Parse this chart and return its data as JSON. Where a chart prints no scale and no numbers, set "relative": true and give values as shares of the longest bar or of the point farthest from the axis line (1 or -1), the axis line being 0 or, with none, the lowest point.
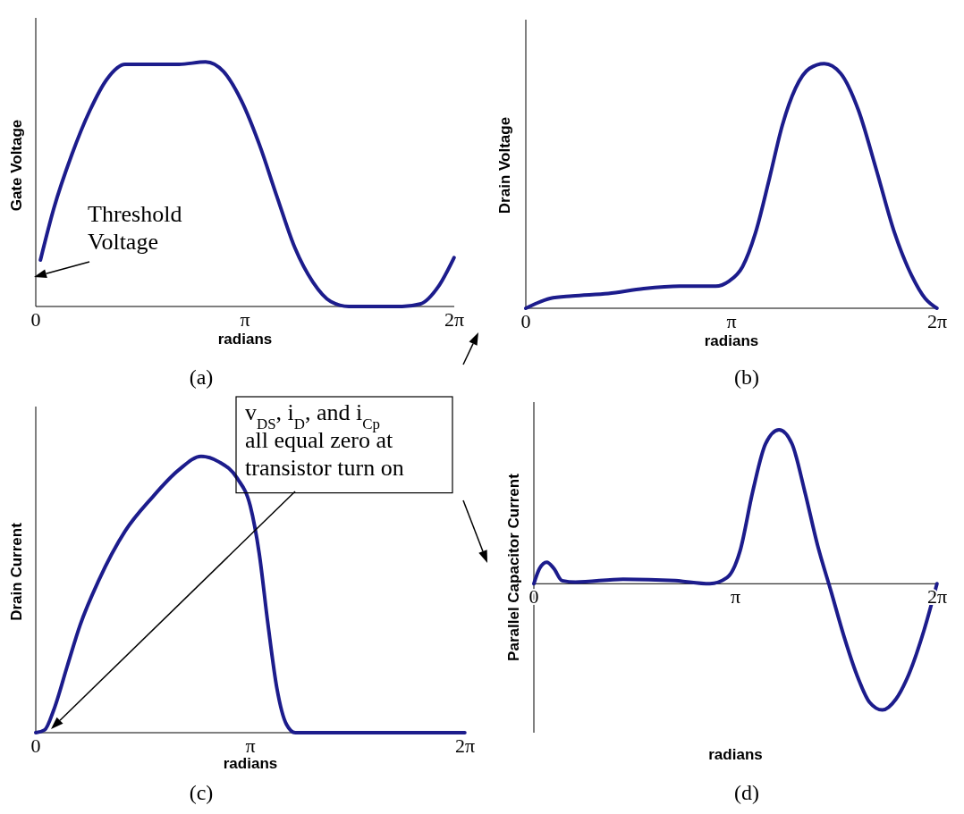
{
  "chart_data": [
    {
      "type": "line",
      "ylabel": "Gate Voltage",
      "xlabel": "radians",
      "relative": true,
      "tick_labels": "x",
      "xlim": [
        0,
        6.2832
      ],
      "xticks": [
        {
          "value": 0,
          "label": "0"
        },
        {
          "value": 3.1416,
          "label": "π"
        },
        {
          "value": 6.2832,
          "label": "2π"
        }
      ],
      "annotations": [
        "Threshold Voltage",
        "(a)"
      ],
      "series": [
        {
          "color": "#1c1c8c",
          "x": [
            0.07,
            0.27,
            0.54,
            0.81,
            1.07,
            1.34,
            1.75,
            2.15,
            2.55,
            2.82,
            3.09,
            3.36,
            3.62,
            3.89,
            4.16,
            4.43,
            4.7,
            5.1,
            5.5,
            5.77,
            6.04,
            6.28
          ],
          "values": [
            0.19,
            0.4,
            0.62,
            0.8,
            0.93,
            0.99,
            0.99,
            0.99,
            1,
            0.96,
            0.84,
            0.66,
            0.45,
            0.24,
            0.1,
            0.02,
            0,
            0,
            0,
            0.01,
            0.08,
            0.2
          ]
        }
      ]
    },
    {
      "type": "line",
      "ylabel": "Drain Voltage",
      "xlabel": "radians",
      "relative": true,
      "tick_labels": "x",
      "xlim": [
        0,
        6.2832
      ],
      "xticks": [
        {
          "value": 0,
          "label": "0"
        },
        {
          "value": 3.1416,
          "label": "π"
        },
        {
          "value": 6.2832,
          "label": "2π"
        }
      ],
      "annotations": [
        "(b)"
      ],
      "series": [
        {
          "color": "#1c1c8c",
          "x": [
            0,
            0.16,
            0.37,
            0.71,
            1.26,
            1.8,
            2.35,
            2.9,
            3.1,
            3.31,
            3.51,
            3.72,
            3.92,
            4.12,
            4.33,
            4.56,
            4.81,
            5.08,
            5.35,
            5.63,
            5.9,
            6.1,
            6.28
          ],
          "values": [
            0,
            0.02,
            0.04,
            0.05,
            0.06,
            0.08,
            0.09,
            0.09,
            0.11,
            0.17,
            0.31,
            0.53,
            0.75,
            0.9,
            0.98,
            1,
            0.96,
            0.81,
            0.57,
            0.31,
            0.13,
            0.04,
            0
          ]
        }
      ]
    },
    {
      "type": "line",
      "ylabel": "Drain Current",
      "xlabel": "radians",
      "relative": true,
      "tick_labels": "x",
      "xlim": [
        0,
        6.2832
      ],
      "xticks": [
        {
          "value": 0,
          "label": "0"
        },
        {
          "value": 3.1416,
          "label": "π"
        },
        {
          "value": 6.2832,
          "label": "2π"
        }
      ],
      "annotations": [
        "v$_{DS}$, i$_{D}$, and i$_{Cp}$ all equal zero at transistor turn on",
        "(c)"
      ],
      "series": [
        {
          "color": "#1c1c8c",
          "x": [
            0,
            0.13,
            0.26,
            0.46,
            0.65,
            0.92,
            1.31,
            1.7,
            2.09,
            2.42,
            2.68,
            2.95,
            3.14,
            3.27,
            3.4,
            3.53,
            3.67,
            3.8,
            4.71,
            6.28
          ],
          "values": [
            0,
            0.01,
            0.08,
            0.24,
            0.39,
            0.55,
            0.73,
            0.85,
            0.95,
            1,
            0.98,
            0.92,
            0.82,
            0.65,
            0.39,
            0.16,
            0.03,
            0,
            0,
            0
          ]
        }
      ]
    },
    {
      "type": "line",
      "ylabel": "Parallel Capacitor Current",
      "xlabel": "radians",
      "relative": true,
      "tick_labels": "x",
      "xlim": [
        0,
        6.2832
      ],
      "xticks": [
        {
          "value": 0,
          "label": "0"
        },
        {
          "value": 3.1416,
          "label": "π"
        },
        {
          "value": 6.2832,
          "label": "2π"
        }
      ],
      "annotations": [
        "(d)"
      ],
      "series": [
        {
          "color": "#1c1c8c",
          "x": [
            0,
            0.09,
            0.2,
            0.31,
            0.44,
            0.65,
            1.39,
            2.2,
            2.74,
            3.01,
            3.21,
            3.41,
            3.61,
            3.82,
            4.02,
            4.22,
            4.42,
            4.63,
            4.83,
            5.03,
            5.23,
            5.43,
            5.64,
            5.84,
            6.08,
            6.28
          ],
          "values": [
            0,
            0.1,
            0.14,
            0.1,
            0.02,
            0.01,
            0.03,
            0.02,
            0,
            0.04,
            0.21,
            0.6,
            0.91,
            1,
            0.91,
            0.6,
            0.25,
            -0.05,
            -0.34,
            -0.59,
            -0.77,
            -0.82,
            -0.75,
            -0.59,
            -0.3,
            0
          ]
        }
      ]
    }
  ]
}
